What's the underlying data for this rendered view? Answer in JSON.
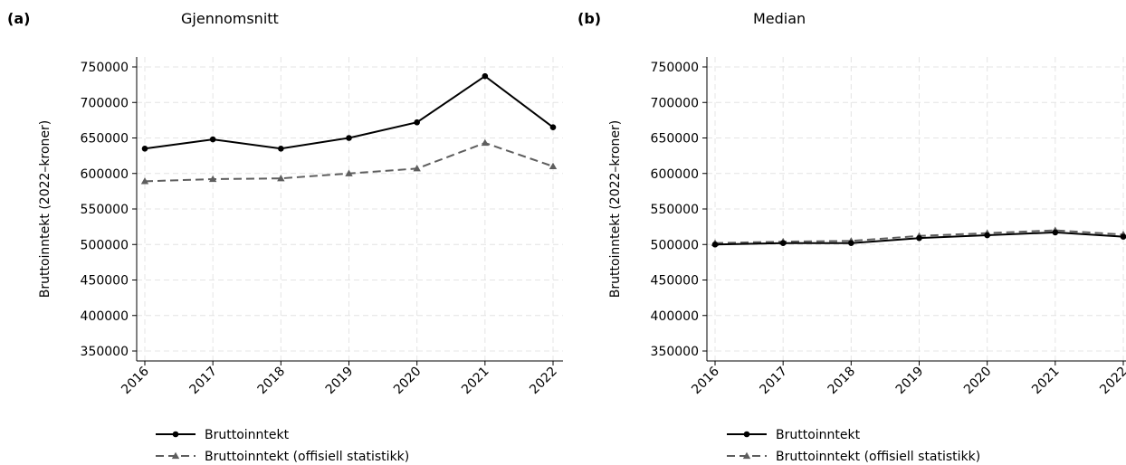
{
  "chart_data": [
    {
      "type": "line",
      "panel_label": "(a)",
      "title": "Gjennomsnitt",
      "ylabel": "Bruttoinntekt (2022–kroner)",
      "xlabel": "",
      "ylim": [
        337000,
        763000
      ],
      "yticks": [
        350000,
        400000,
        450000,
        500000,
        550000,
        600000,
        650000,
        700000,
        750000
      ],
      "ytick_labels": [
        "350000",
        "400000",
        "450000",
        "500000",
        "550000",
        "600000",
        "650000",
        "700000",
        "750000"
      ],
      "categories": [
        "2016",
        "2017",
        "2018",
        "2019",
        "2020",
        "2021",
        "2022"
      ],
      "grid": true,
      "legend_position": "bottom",
      "series": [
        {
          "name": "Bruttoinntekt",
          "values": [
            635000,
            648000,
            635000,
            650000,
            672000,
            737000,
            665000
          ],
          "color": "#000000",
          "dash": "solid",
          "marker": "circle"
        },
        {
          "name": "Bruttoinntekt (offisiell statistikk)",
          "values": [
            589000,
            592000,
            593000,
            600000,
            607000,
            643000,
            610000
          ],
          "color": "#5e5e5e",
          "dash": "dashed",
          "marker": "triangle"
        }
      ]
    },
    {
      "type": "line",
      "panel_label": "(b)",
      "title": "Median",
      "ylabel": "Bruttoinntekt (2022–kroner)",
      "xlabel": "",
      "ylim": [
        337000,
        763000
      ],
      "yticks": [
        350000,
        400000,
        450000,
        500000,
        550000,
        600000,
        650000,
        700000,
        750000
      ],
      "ytick_labels": [
        "350000",
        "400000",
        "450000",
        "500000",
        "550000",
        "600000",
        "650000",
        "700000",
        "750000"
      ],
      "categories": [
        "2016",
        "2017",
        "2018",
        "2019",
        "2020",
        "2021",
        "2022"
      ],
      "grid": true,
      "legend_position": "bottom",
      "series": [
        {
          "name": "Bruttoinntekt",
          "values": [
            500000,
            502000,
            502000,
            509000,
            513000,
            517000,
            511000
          ],
          "color": "#000000",
          "dash": "solid",
          "marker": "circle"
        },
        {
          "name": "Bruttoinntekt (offisiell statistikk)",
          "values": [
            502000,
            504000,
            505000,
            512000,
            516000,
            520000,
            514000
          ],
          "color": "#5e5e5e",
          "dash": "dashed",
          "marker": "triangle"
        }
      ]
    }
  ]
}
